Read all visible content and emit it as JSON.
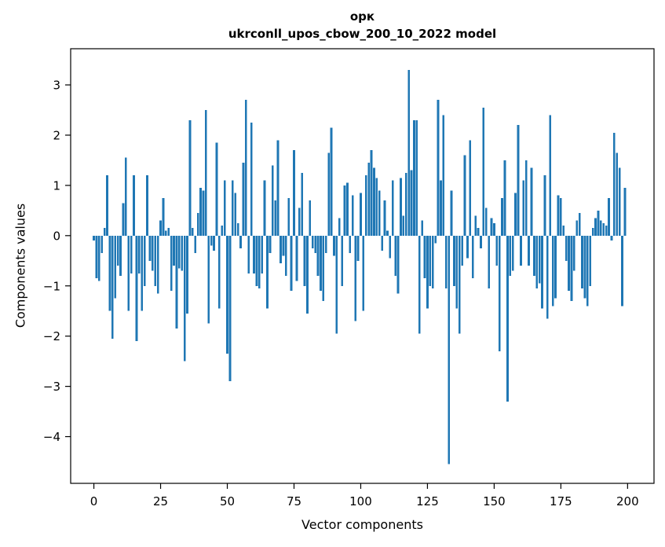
{
  "figure": {
    "background": "#ffffff",
    "title": "орк",
    "subtitle": "ukrconll_upos_cbow_200_10_2022 model",
    "xlabel": "Vector components",
    "ylabel": "Components values"
  },
  "chart_data": {
    "type": "bar",
    "title": "орк",
    "subtitle": "ukrconll_upos_cbow_200_10_2022 model",
    "xlabel": "Vector components",
    "ylabel": "Components values",
    "bar_color": "#1f77b4",
    "axis_color": "#000000",
    "grid": false,
    "legend": false,
    "x_start": 0,
    "x_step": 1,
    "xlim": [
      -8.7,
      209.9
    ],
    "ylim": [
      -4.93,
      3.72
    ],
    "x_ticks": [
      0,
      25,
      50,
      75,
      100,
      125,
      150,
      175,
      200
    ],
    "x_tick_labels": [
      "0",
      "25",
      "50",
      "75",
      "100",
      "125",
      "150",
      "175",
      "200"
    ],
    "y_ticks": [
      -4,
      -3,
      -2,
      -1,
      0,
      1,
      2,
      3
    ],
    "y_tick_labels": [
      "−4",
      "−3",
      "−2",
      "−1",
      "0",
      "1",
      "2",
      "3"
    ],
    "bar_data_width": 0.8,
    "values": [
      -0.1,
      -0.85,
      -0.9,
      -0.35,
      0.15,
      1.2,
      -1.5,
      -2.05,
      -1.25,
      -0.6,
      -0.8,
      0.65,
      1.55,
      -1.5,
      -0.75,
      1.2,
      -2.1,
      -0.75,
      -1.5,
      -1.0,
      1.2,
      -0.5,
      -0.7,
      -1.0,
      -1.15,
      0.3,
      0.75,
      0.1,
      0.15,
      -1.1,
      -0.6,
      -1.85,
      -0.65,
      -0.7,
      -2.5,
      -1.55,
      2.3,
      0.15,
      -0.35,
      0.45,
      0.95,
      0.9,
      2.5,
      -1.75,
      -0.2,
      -0.3,
      1.85,
      -1.45,
      0.2,
      1.1,
      -2.35,
      -2.9,
      1.1,
      0.85,
      0.25,
      -0.25,
      1.45,
      2.7,
      -0.75,
      2.25,
      -0.75,
      -1.0,
      -1.05,
      -0.75,
      1.1,
      -1.45,
      -0.35,
      1.4,
      0.7,
      1.9,
      -0.55,
      -0.4,
      -0.8,
      0.75,
      -1.1,
      1.7,
      -0.9,
      0.55,
      1.25,
      -1.0,
      -1.55,
      0.7,
      -0.25,
      -0.35,
      -0.8,
      -1.1,
      -1.3,
      -0.35,
      1.65,
      2.15,
      -0.4,
      -1.95,
      0.35,
      -1.0,
      1.0,
      1.05,
      -0.35,
      0.8,
      -1.7,
      -0.5,
      0.85,
      -1.5,
      1.2,
      1.45,
      1.7,
      1.35,
      1.15,
      0.9,
      -0.3,
      0.7,
      0.1,
      -0.45,
      1.1,
      -0.8,
      -1.15,
      1.15,
      0.4,
      1.25,
      3.3,
      1.3,
      2.3,
      2.3,
      -1.95,
      0.3,
      -0.85,
      -1.45,
      -1.0,
      -1.05,
      -0.15,
      2.7,
      1.1,
      2.4,
      -1.05,
      -4.55,
      0.9,
      -1.0,
      -1.45,
      -1.95,
      -0.6,
      1.6,
      -0.45,
      1.9,
      -0.85,
      0.4,
      0.15,
      -0.25,
      2.55,
      0.55,
      -1.05,
      0.35,
      0.25,
      -0.6,
      -2.3,
      0.75,
      1.5,
      -3.3,
      -0.8,
      -0.7,
      0.85,
      2.2,
      -0.6,
      1.1,
      1.5,
      -0.6,
      1.35,
      -0.8,
      -1.05,
      -0.95,
      -1.45,
      1.2,
      -1.65,
      2.4,
      -1.4,
      -1.25,
      0.8,
      0.75,
      0.2,
      -0.5,
      -1.1,
      -1.3,
      -0.7,
      0.3,
      0.45,
      -1.05,
      -1.25,
      -1.4,
      -1.0,
      0.15,
      0.35,
      0.5,
      0.3,
      0.25,
      0.2,
      0.75,
      -0.1,
      2.05,
      1.65,
      1.35,
      -1.4,
      0.95
    ]
  }
}
